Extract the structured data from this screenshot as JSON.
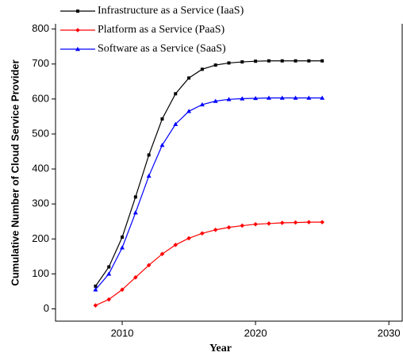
{
  "chart_data": {
    "type": "line",
    "x_label": "Year",
    "y_label": "Cumulative Number of Cloud Service Provider",
    "x": [
      2008,
      2009,
      2010,
      2011,
      2012,
      2013,
      2014,
      2015,
      2016,
      2017,
      2018,
      2019,
      2020,
      2021,
      2022,
      2023,
      2024,
      2025
    ],
    "series": [
      {
        "name": "Infrastructure as a Service (IaaS)",
        "color": "#000000",
        "marker": "square",
        "values": [
          65,
          120,
          205,
          320,
          440,
          543,
          615,
          660,
          685,
          697,
          703,
          706,
          708,
          709,
          709,
          709,
          709,
          709
        ]
      },
      {
        "name": "Platform as a Service (PaaS)",
        "color": "#ff0000",
        "marker": "diamond",
        "values": [
          10,
          27,
          55,
          90,
          125,
          157,
          183,
          202,
          216,
          226,
          233,
          238,
          242,
          244,
          246,
          247,
          248,
          248
        ]
      },
      {
        "name": "Software as a Service (SaaS)",
        "color": "#0000ff",
        "marker": "triangle",
        "values": [
          55,
          100,
          175,
          275,
          380,
          468,
          528,
          565,
          584,
          594,
          599,
          601,
          602,
          603,
          603,
          603,
          603,
          603
        ]
      }
    ],
    "xlim": [
      2005,
      2031
    ],
    "xticks": [
      2010,
      2020,
      2030
    ],
    "ylim": [
      -35,
      815
    ],
    "yticks": [
      0,
      100,
      200,
      300,
      400,
      500,
      600,
      700,
      800
    ],
    "grid": false,
    "legend": "top-left"
  }
}
